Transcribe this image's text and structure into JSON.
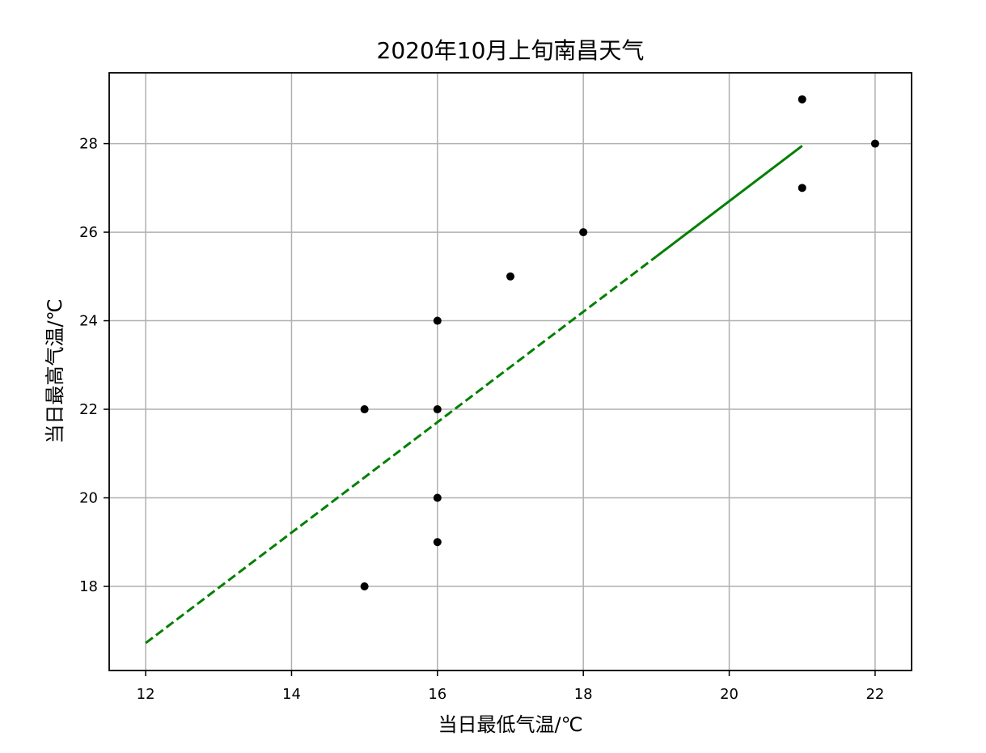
{
  "chart_data": {
    "type": "scatter",
    "title": "2020年10月上旬南昌天气",
    "xlabel": "当日最低气温/℃",
    "ylabel": "当日最高气温/℃",
    "xlim": [
      11.5,
      22.5
    ],
    "ylim": [
      16.1,
      29.6
    ],
    "xticks": [
      12,
      14,
      16,
      18,
      20,
      22
    ],
    "yticks": [
      18,
      20,
      22,
      24,
      26,
      28
    ],
    "grid": true,
    "points": [
      {
        "x": 15,
        "y": 18
      },
      {
        "x": 15,
        "y": 22
      },
      {
        "x": 16,
        "y": 19
      },
      {
        "x": 16,
        "y": 20
      },
      {
        "x": 16,
        "y": 22
      },
      {
        "x": 16,
        "y": 24
      },
      {
        "x": 17,
        "y": 25
      },
      {
        "x": 18,
        "y": 26
      },
      {
        "x": 21,
        "y": 27
      },
      {
        "x": 21,
        "y": 29
      },
      {
        "x": 22,
        "y": 28
      }
    ],
    "point_color": "#000000",
    "fit_line": {
      "color": "#008000",
      "dashed_segment": {
        "x": [
          12,
          19
        ],
        "y": [
          16.72,
          25.45
        ]
      },
      "solid_segment": {
        "x": [
          19,
          21
        ],
        "y": [
          25.45,
          27.95
        ]
      }
    }
  }
}
